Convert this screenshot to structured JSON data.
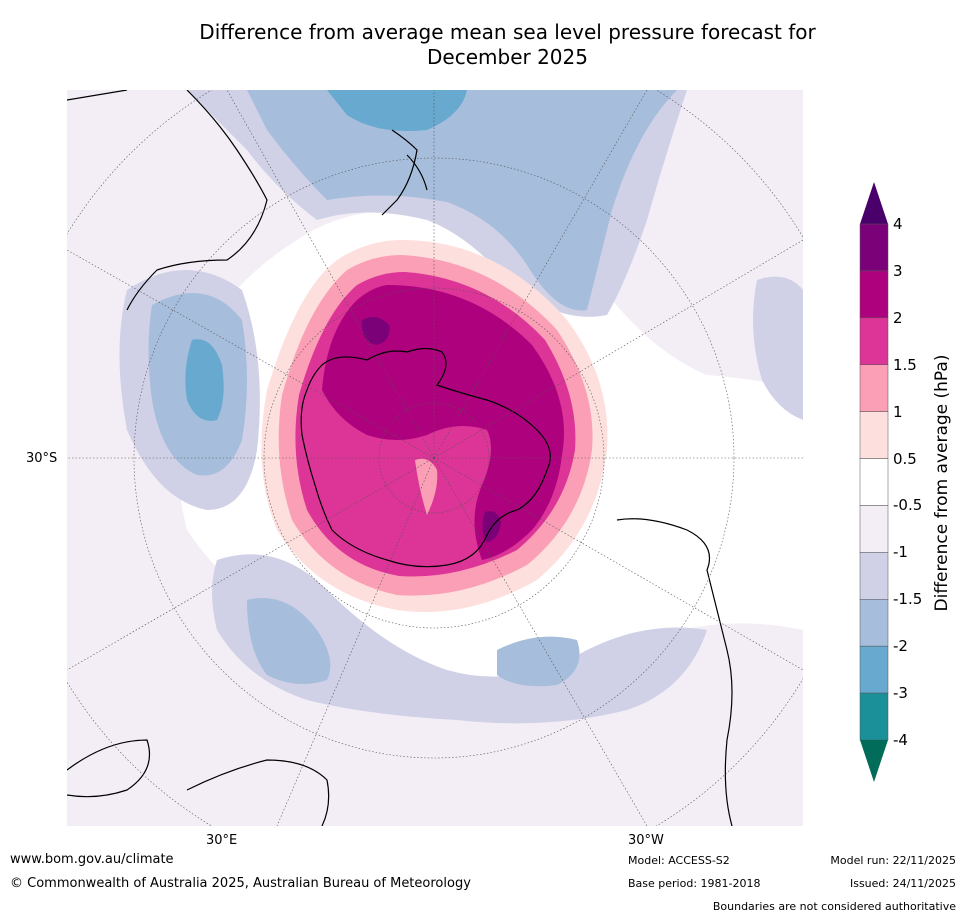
{
  "title": {
    "line1": "Difference from average mean sea level pressure forecast for",
    "line2": "December 2025"
  },
  "map": {
    "projection": "south-polar-stereographic",
    "lat_label": "30°S",
    "lon_labels": {
      "east": "30°E",
      "west": "30°W"
    },
    "anomaly_regions": [
      {
        "name": "antarctic-high",
        "anomaly_hPa": "1.5 to 3"
      },
      {
        "name": "south-pacific-low",
        "anomaly_hPa": "-1 to -3"
      },
      {
        "name": "south-indian-low",
        "anomaly_hPa": "-1 to -3"
      },
      {
        "name": "south-atlantic-low",
        "anomaly_hPa": "-1 to -2"
      }
    ]
  },
  "colorbar": {
    "title": "Difference from average (hPa)",
    "ticks": [
      "4",
      "3",
      "2",
      "1.5",
      "1",
      "0.5",
      "-0.5",
      "-1",
      "-1.5",
      "-2",
      "-3",
      "-4"
    ],
    "colors": [
      "#7a0177",
      "#ae017e",
      "#dd3497",
      "#fa9fb5",
      "#fde0dd",
      "#ffffff",
      "#f3edf5",
      "#d0d1e6",
      "#a6bddb",
      "#67a9cf",
      "#1c9099"
    ],
    "over_color": "#49006a",
    "under_color": "#016c59"
  },
  "footer": {
    "url": "www.bom.gov.au/climate",
    "copyright": "© Commonwealth of Australia 2025, Australian Bureau of Meteorology",
    "model": "Model: ACCESS-S2",
    "base_period": "Base period: 1981-2018",
    "model_run": "Model run: 22/11/2025",
    "issued": "Issued: 24/11/2025",
    "disclaimer": "Boundaries are not considered authoritative"
  }
}
